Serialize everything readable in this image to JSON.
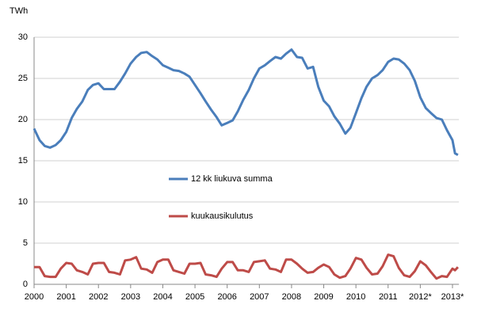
{
  "chart_data": {
    "type": "line",
    "y_label": "TWh",
    "x": [
      2000,
      2000.17,
      2000.33,
      2000.5,
      2000.67,
      2000.83,
      2001,
      2001.17,
      2001.33,
      2001.5,
      2001.67,
      2001.83,
      2002,
      2002.17,
      2002.33,
      2002.5,
      2002.67,
      2002.83,
      2003,
      2003.17,
      2003.33,
      2003.5,
      2003.67,
      2003.83,
      2004,
      2004.17,
      2004.33,
      2004.5,
      2004.67,
      2004.83,
      2005,
      2005.17,
      2005.33,
      2005.5,
      2005.67,
      2005.83,
      2006,
      2006.17,
      2006.33,
      2006.5,
      2006.67,
      2006.83,
      2007,
      2007.17,
      2007.33,
      2007.5,
      2007.67,
      2007.83,
      2008,
      2008.17,
      2008.33,
      2008.5,
      2008.67,
      2008.83,
      2009,
      2009.17,
      2009.33,
      2009.5,
      2009.67,
      2009.83,
      2010,
      2010.17,
      2010.33,
      2010.5,
      2010.67,
      2010.83,
      2011,
      2011.17,
      2011.33,
      2011.5,
      2011.67,
      2011.83,
      2012,
      2012.17,
      2012.33,
      2012.5,
      2012.67,
      2012.83,
      2013,
      2013.08,
      2013.17
    ],
    "series": [
      {
        "name": "12 kk liukuva summa",
        "color": "#4a7ebb",
        "values": [
          18.9,
          17.5,
          16.8,
          16.6,
          16.9,
          17.5,
          18.5,
          20.2,
          21.3,
          22.2,
          23.6,
          24.2,
          24.4,
          23.7,
          23.7,
          23.7,
          24.6,
          25.6,
          26.8,
          27.6,
          28.1,
          28.2,
          27.7,
          27.3,
          26.6,
          26.3,
          26.0,
          25.9,
          25.6,
          25.2,
          24.2,
          23.2,
          22.2,
          21.2,
          20.3,
          19.3,
          19.6,
          19.9,
          21.0,
          22.4,
          23.6,
          25.0,
          26.2,
          26.6,
          27.1,
          27.6,
          27.4,
          28.0,
          28.5,
          27.6,
          27.5,
          26.2,
          26.4,
          24.0,
          22.3,
          21.6,
          20.4,
          19.5,
          18.3,
          19.0,
          20.8,
          22.6,
          24.0,
          25.0,
          25.4,
          26.0,
          27.0,
          27.4,
          27.3,
          26.8,
          26.0,
          24.7,
          22.7,
          21.4,
          20.8,
          20.2,
          20.0,
          18.7,
          17.5,
          15.9,
          15.7
        ]
      },
      {
        "name": "kuukausikulutus",
        "color": "#be4b48",
        "values": [
          2.1,
          2.1,
          1.0,
          0.9,
          0.9,
          1.9,
          2.6,
          2.5,
          1.7,
          1.5,
          1.2,
          2.5,
          2.6,
          2.6,
          1.5,
          1.4,
          1.2,
          2.9,
          3.0,
          3.3,
          1.9,
          1.8,
          1.4,
          2.7,
          3.0,
          3.0,
          1.7,
          1.5,
          1.3,
          2.5,
          2.5,
          2.6,
          1.2,
          1.1,
          0.9,
          1.9,
          2.7,
          2.7,
          1.7,
          1.7,
          1.5,
          2.7,
          2.8,
          2.9,
          1.9,
          1.8,
          1.5,
          3.0,
          3.0,
          2.5,
          1.9,
          1.4,
          1.5,
          2.0,
          2.4,
          2.1,
          1.2,
          0.8,
          1.0,
          1.9,
          3.2,
          3.0,
          2.0,
          1.2,
          1.3,
          2.2,
          3.6,
          3.4,
          2.0,
          1.1,
          0.9,
          1.6,
          2.8,
          2.3,
          1.5,
          0.7,
          1.0,
          0.9,
          1.9,
          1.7,
          2.1
        ]
      }
    ],
    "xlim": [
      2000,
      2013.2
    ],
    "xticks": [
      2000,
      2001,
      2002,
      2003,
      2004,
      2005,
      2006,
      2007,
      2008,
      2009,
      2010,
      2011,
      {
        "value": 2012,
        "label": "2012*"
      },
      {
        "value": 2013,
        "label": "2013*"
      }
    ],
    "ylim": [
      0,
      30
    ],
    "yticks": [
      0,
      5,
      10,
      15,
      20,
      25,
      30
    ],
    "grid": true
  }
}
